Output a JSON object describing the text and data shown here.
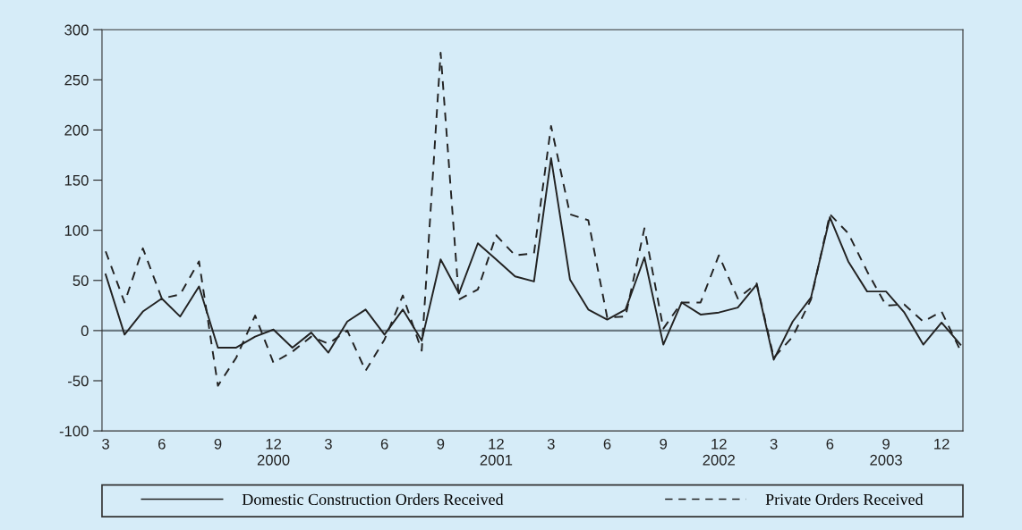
{
  "chart_data": {
    "type": "line",
    "x": [
      "2000-03",
      "2000-04",
      "2000-05",
      "2000-06",
      "2000-07",
      "2000-08",
      "2000-09",
      "2000-10",
      "2000-11",
      "2000-12",
      "2001-01",
      "2001-02",
      "2001-03",
      "2001-04",
      "2001-05",
      "2001-06",
      "2001-07",
      "2001-08",
      "2001-09",
      "2001-10",
      "2001-11",
      "2001-12",
      "2002-01",
      "2002-02",
      "2002-03",
      "2002-04",
      "2002-05",
      "2002-06",
      "2002-07",
      "2002-08",
      "2002-09",
      "2002-10",
      "2002-11",
      "2002-12",
      "2003-01",
      "2003-02",
      "2003-03",
      "2003-04",
      "2003-05",
      "2003-06",
      "2003-07",
      "2003-08",
      "2003-09",
      "2003-10",
      "2003-11",
      "2003-12",
      "2004-01"
    ],
    "series": [
      {
        "name": "Domestic Construction Orders Received",
        "color": "#222222",
        "line_style": "solid",
        "values": [
          56,
          -4,
          19,
          32,
          14,
          44,
          -17,
          -17,
          -6,
          1,
          -17,
          -2,
          -22,
          9,
          21,
          -4,
          21,
          -10,
          71,
          37,
          87,
          71,
          54,
          49,
          172,
          51,
          21,
          11,
          21,
          73,
          -14,
          28,
          16,
          18,
          23,
          46,
          -29,
          9,
          33,
          113,
          69,
          39,
          39,
          18,
          -14,
          8,
          -14
        ]
      },
      {
        "name": "Private Orders Received",
        "color": "#222222",
        "line_style": "dashed",
        "values": [
          79,
          28,
          82,
          32,
          36,
          69,
          -55,
          -27,
          15,
          -32,
          -21,
          -6,
          -13,
          0,
          -40,
          -9,
          35,
          -20,
          277,
          31,
          41,
          95,
          75,
          77,
          204,
          116,
          110,
          13,
          14,
          102,
          2,
          28,
          28,
          75,
          32,
          47,
          -27,
          -6,
          31,
          116,
          97,
          59,
          25,
          26,
          9,
          19,
          -20
        ]
      }
    ],
    "xlim": [
      "2000-02-24",
      "2004-01-05"
    ],
    "xticks": [
      {
        "value": "2000-03",
        "label": "3"
      },
      {
        "value": "2000-06",
        "label": "6"
      },
      {
        "value": "2000-09",
        "label": "9"
      },
      {
        "value": "2000-12",
        "label": "12\n2000"
      },
      {
        "value": "2001-03",
        "label": "3"
      },
      {
        "value": "2001-06",
        "label": "6"
      },
      {
        "value": "2001-09",
        "label": "9"
      },
      {
        "value": "2001-12",
        "label": "12\n2001"
      },
      {
        "value": "2002-03",
        "label": "3"
      },
      {
        "value": "2002-06",
        "label": "6"
      },
      {
        "value": "2002-09",
        "label": "9"
      },
      {
        "value": "2002-12",
        "label": "12\n2002"
      },
      {
        "value": "2003-03",
        "label": "3"
      },
      {
        "value": "2003-06",
        "label": "6"
      },
      {
        "value": "2003-09",
        "label": "9\n2003"
      },
      {
        "value": "2003-12",
        "label": "12"
      }
    ],
    "ylim": [
      -100,
      300
    ],
    "yticks": [
      -100,
      -50,
      0,
      50,
      100,
      150,
      200,
      250,
      300
    ],
    "ref_lines": [
      {
        "axis": "y",
        "value": 0,
        "color": "#6d7b84"
      }
    ],
    "grid": false,
    "legend": "bottom",
    "marker": "none"
  }
}
